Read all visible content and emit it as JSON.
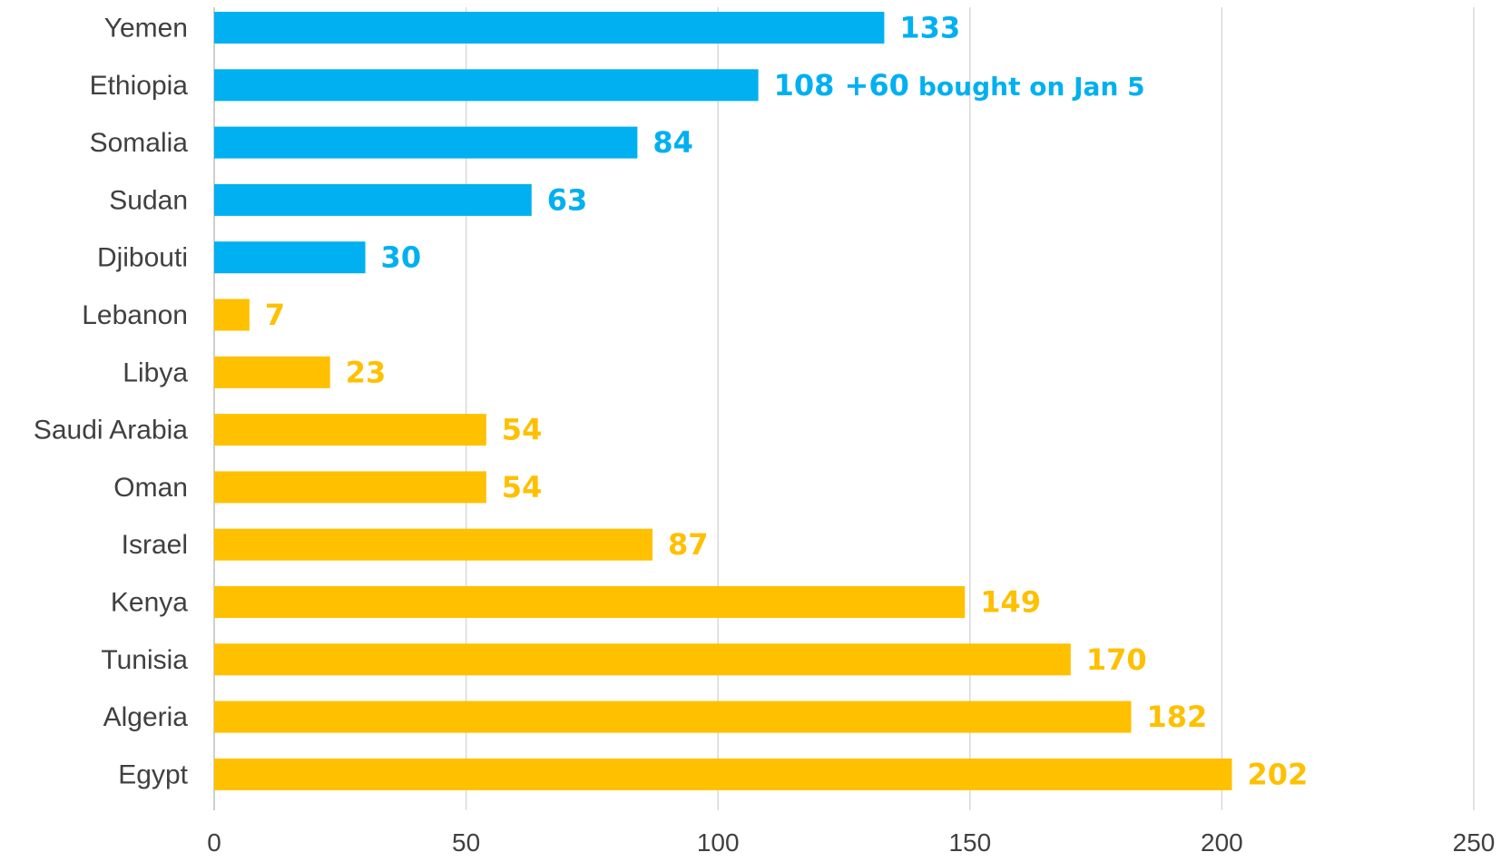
{
  "chart_data": {
    "type": "bar",
    "orientation": "horizontal",
    "title": "",
    "xlabel": "",
    "ylabel": "",
    "xlim": [
      0,
      250
    ],
    "x_ticks": [
      0,
      50,
      100,
      150,
      200,
      250
    ],
    "grid": "vertical",
    "legend": "none",
    "colors": {
      "blue": "#00B0F0",
      "gold": "#FFC000"
    },
    "bars": [
      {
        "category": "Yemen",
        "value": 133,
        "color": "blue",
        "label": "133"
      },
      {
        "category": "Ethiopia",
        "value": 108,
        "color": "blue",
        "label": "108 +60",
        "note": "bought on Jan 5"
      },
      {
        "category": "Somalia",
        "value": 84,
        "color": "blue",
        "label": "84"
      },
      {
        "category": "Sudan",
        "value": 63,
        "color": "blue",
        "label": "63"
      },
      {
        "category": "Djibouti",
        "value": 30,
        "color": "blue",
        "label": "30"
      },
      {
        "category": "Lebanon",
        "value": 7,
        "color": "gold",
        "label": "7"
      },
      {
        "category": "Libya",
        "value": 23,
        "color": "gold",
        "label": "23"
      },
      {
        "category": "Saudi Arabia",
        "value": 54,
        "color": "gold",
        "label": "54"
      },
      {
        "category": "Oman",
        "value": 54,
        "color": "gold",
        "label": "54"
      },
      {
        "category": "Israel",
        "value": 87,
        "color": "gold",
        "label": "87"
      },
      {
        "category": "Kenya",
        "value": 149,
        "color": "gold",
        "label": "149"
      },
      {
        "category": "Tunisia",
        "value": 170,
        "color": "gold",
        "label": "170"
      },
      {
        "category": "Algeria",
        "value": 182,
        "color": "gold",
        "label": "182"
      },
      {
        "category": "Egypt",
        "value": 202,
        "color": "gold",
        "label": "202"
      }
    ]
  }
}
